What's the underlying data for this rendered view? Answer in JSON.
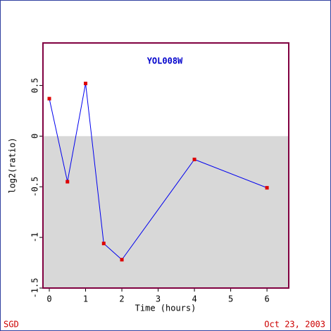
{
  "chart_data": {
    "type": "line",
    "title": "YOL008W",
    "x_label": "Time (hours)",
    "y_label": "log2(ratio)",
    "x": [
      0,
      0.5,
      1,
      1.5,
      2,
      4,
      6
    ],
    "series": [
      {
        "name": "YOL008W",
        "color": "#0000ee",
        "marker_color": "#dd0000",
        "values": [
          0.37,
          -0.45,
          0.52,
          -1.06,
          -1.22,
          -0.23,
          -0.51
        ]
      }
    ],
    "xlim": [
      -0.175,
      6.6
    ],
    "xticks": [
      0,
      1,
      2,
      3,
      4,
      5,
      6
    ],
    "ylim": [
      -1.5,
      0.92
    ],
    "yticks": [
      -1.5,
      -1,
      -0.5,
      0,
      0.5
    ],
    "shade_negative": true,
    "shade_color": "#d8d8d8",
    "frame_color": "#800040"
  },
  "footer": {
    "left": "SGD",
    "right": "Oct 23, 2003"
  }
}
